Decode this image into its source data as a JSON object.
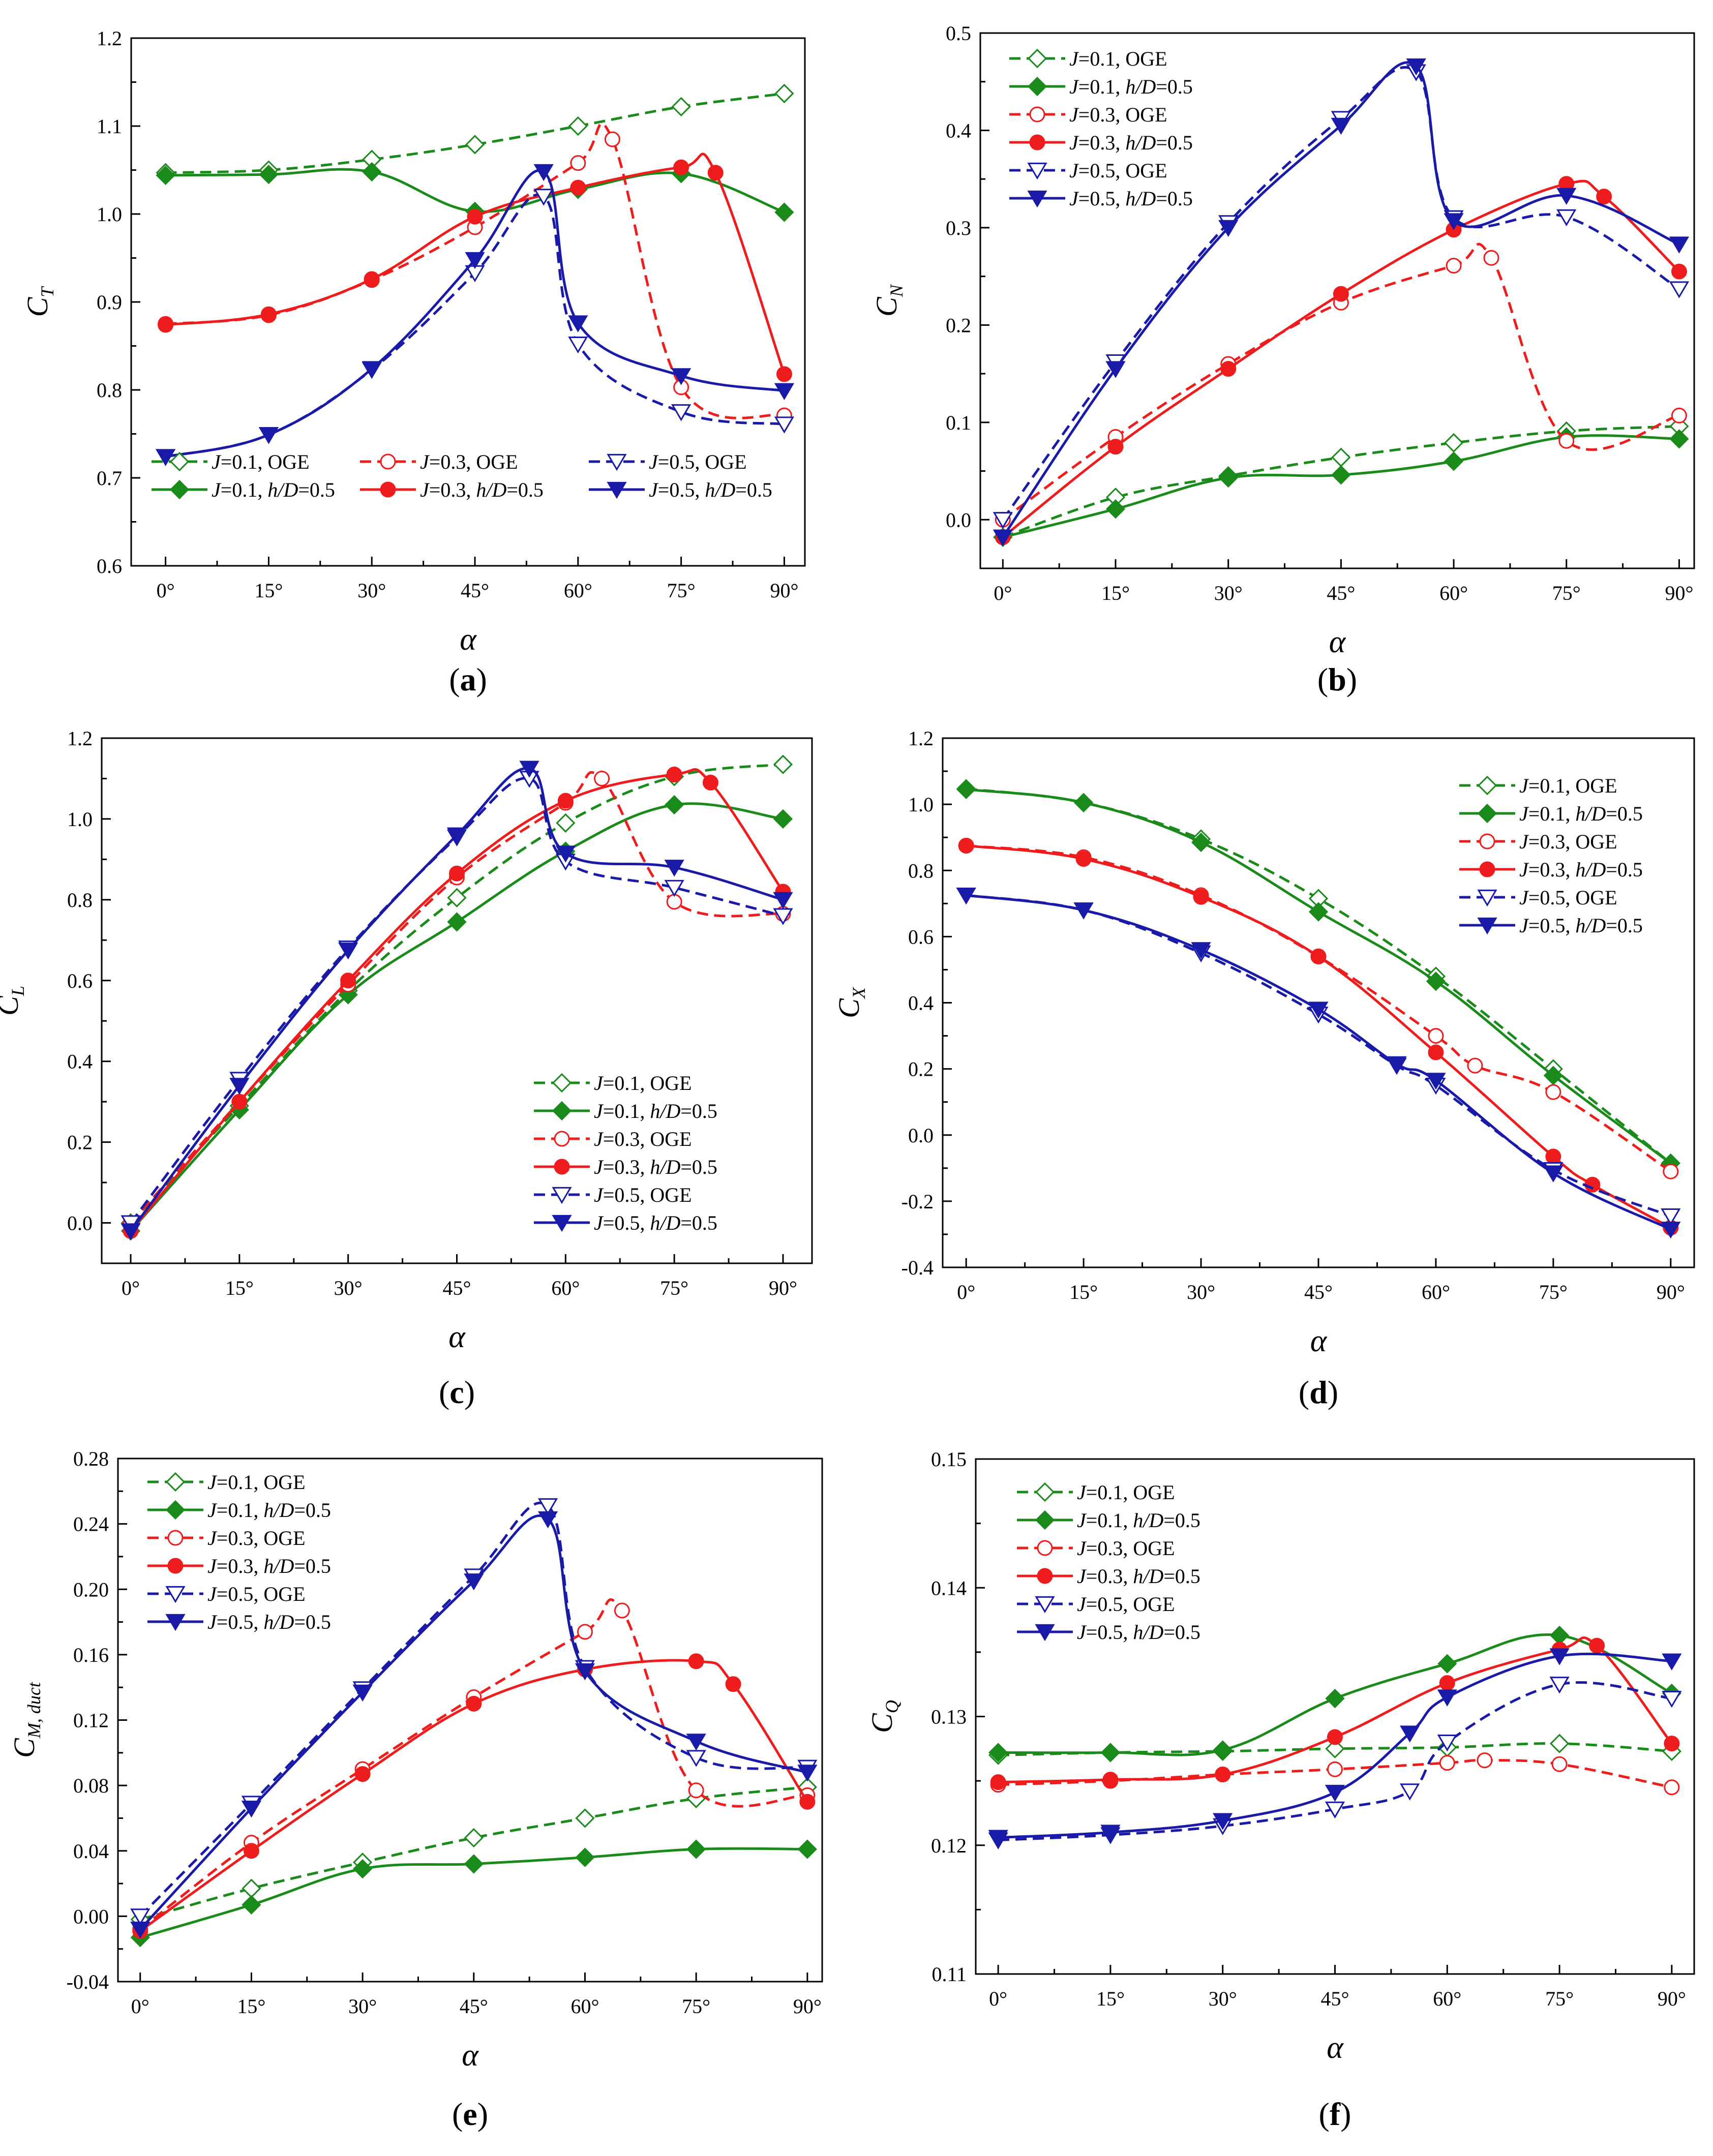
{
  "figure": {
    "x_tick_labels": [
      "0°",
      "15°",
      "30°",
      "45°",
      "60°",
      "75°",
      "90°"
    ],
    "x_label": "α",
    "legend_series": [
      {
        "key": "J01_OGE",
        "J": "J",
        "mid": "=0.1, OGE",
        "hD": "",
        "tail": ""
      },
      {
        "key": "J01_hD",
        "J": "J",
        "mid": "=0.1, ",
        "hD": "h/D",
        "tail": "=0.5"
      },
      {
        "key": "J03_OGE",
        "J": "J",
        "mid": "=0.3, OGE",
        "hD": "",
        "tail": ""
      },
      {
        "key": "J03_hD",
        "J": "J",
        "mid": "=0.3, ",
        "hD": "h/D",
        "tail": "=0.5"
      },
      {
        "key": "J05_OGE",
        "J": "J",
        "mid": "=0.5, OGE",
        "hD": "",
        "tail": ""
      },
      {
        "key": "J05_hD",
        "J": "J",
        "mid": "=0.5, ",
        "hD": "h/D",
        "tail": "=0.5"
      }
    ],
    "colors": {
      "J01": "#1a8a1a",
      "J03": "#ee1c1c",
      "J05": "#1a1aa8"
    }
  },
  "chart_data": [
    {
      "panel": "(a)",
      "panel_letter": "a",
      "type": "line",
      "ylabel_main": "C",
      "ylabel_sub": "T",
      "ylim": [
        0.6,
        1.2
      ],
      "yticks": [
        0.6,
        0.7,
        0.8,
        0.9,
        1.0,
        1.1,
        1.2
      ],
      "ytick_labels": [
        "0.6",
        "0.7",
        "0.8",
        "0.9",
        "1.0",
        "1.1",
        "1.2"
      ],
      "xlim": [
        -5,
        93
      ],
      "legend_position": "bottom (2 rows × 3 columns)",
      "series": [
        {
          "name": "J=0.1, OGE",
          "x": [
            0,
            15,
            30,
            45,
            60,
            75,
            90
          ],
          "y": [
            1.047,
            1.05,
            1.062,
            1.079,
            1.1,
            1.122,
            1.137
          ]
        },
        {
          "name": "J=0.1, h/D=0.5",
          "x": [
            0,
            15,
            30,
            45,
            60,
            75,
            90
          ],
          "y": [
            1.044,
            1.045,
            1.048,
            1.003,
            1.028,
            1.046,
            1.002
          ]
        },
        {
          "name": "J=0.3, OGE",
          "x": [
            0,
            15,
            30,
            45,
            60,
            65,
            75,
            90
          ],
          "y": [
            0.875,
            0.885,
            0.925,
            0.985,
            1.058,
            1.085,
            0.803,
            0.771
          ]
        },
        {
          "name": "J=0.3, h/D=0.5",
          "x": [
            0,
            15,
            30,
            45,
            60,
            75,
            80,
            90
          ],
          "y": [
            0.874,
            0.886,
            0.926,
            0.997,
            1.03,
            1.053,
            1.047,
            0.818
          ]
        },
        {
          "name": "J=0.5, OGE",
          "x": [
            0,
            15,
            30,
            45,
            55,
            60,
            75,
            90
          ],
          "y": [
            0.724,
            0.749,
            0.823,
            0.933,
            1.02,
            0.852,
            0.775,
            0.761
          ]
        },
        {
          "name": "J=0.5, h/D=0.5",
          "x": [
            0,
            15,
            30,
            45,
            55,
            60,
            75,
            90
          ],
          "y": [
            0.724,
            0.749,
            0.824,
            0.948,
            1.048,
            0.876,
            0.816,
            0.799
          ]
        }
      ]
    },
    {
      "panel": "(b)",
      "panel_letter": "b",
      "type": "line",
      "ylabel_main": "C",
      "ylabel_sub": "N",
      "ylim": [
        -0.05,
        0.5
      ],
      "yticks": [
        0.0,
        0.1,
        0.2,
        0.3,
        0.4,
        0.5
      ],
      "ytick_labels": [
        "0.0",
        "0.1",
        "0.2",
        "0.3",
        "0.4",
        "0.5"
      ],
      "xlim": [
        -3,
        92
      ],
      "legend_position": "top-left",
      "series": [
        {
          "name": "J=0.1, OGE",
          "x": [
            0,
            15,
            30,
            45,
            60,
            75,
            90
          ],
          "y": [
            -0.018,
            0.023,
            0.045,
            0.064,
            0.079,
            0.091,
            0.096
          ]
        },
        {
          "name": "J=0.1, h/D=0.5",
          "x": [
            0,
            15,
            30,
            45,
            60,
            75,
            90
          ],
          "y": [
            -0.018,
            0.011,
            0.043,
            0.046,
            0.06,
            0.085,
            0.083
          ]
        },
        {
          "name": "J=0.3, OGE",
          "x": [
            0,
            15,
            30,
            45,
            60,
            65,
            75,
            90
          ],
          "y": [
            0.0,
            0.085,
            0.16,
            0.223,
            0.261,
            0.269,
            0.081,
            0.107
          ]
        },
        {
          "name": "J=0.3, h/D=0.5",
          "x": [
            0,
            15,
            30,
            45,
            60,
            75,
            80,
            90
          ],
          "y": [
            -0.018,
            0.075,
            0.155,
            0.232,
            0.298,
            0.345,
            0.332,
            0.255
          ]
        },
        {
          "name": "J=0.5, OGE",
          "x": [
            0,
            15,
            30,
            45,
            55,
            60,
            75,
            90
          ],
          "y": [
            0.0,
            0.162,
            0.305,
            0.412,
            0.46,
            0.31,
            0.311,
            0.237
          ]
        },
        {
          "name": "J=0.5, h/D=0.5",
          "x": [
            0,
            15,
            30,
            45,
            55,
            60,
            75,
            90
          ],
          "y": [
            -0.018,
            0.155,
            0.3,
            0.405,
            0.466,
            0.307,
            0.333,
            0.283
          ]
        }
      ]
    },
    {
      "panel": "(c)",
      "panel_letter": "c",
      "type": "line",
      "ylabel_main": "C",
      "ylabel_sub": "L",
      "ylim": [
        -0.1,
        1.2
      ],
      "yticks": [
        0.0,
        0.2,
        0.4,
        0.6,
        0.8,
        1.0,
        1.2
      ],
      "ytick_labels": [
        "0.0",
        "0.2",
        "0.4",
        "0.6",
        "0.8",
        "1.0",
        "1.2"
      ],
      "xlim": [
        -4,
        94
      ],
      "legend_position": "middle-right",
      "series": [
        {
          "name": "J=0.1, OGE",
          "x": [
            0,
            15,
            30,
            45,
            60,
            75,
            90
          ],
          "y": [
            0.0,
            0.29,
            0.575,
            0.805,
            0.99,
            1.105,
            1.135
          ]
        },
        {
          "name": "J=0.1, h/D=0.5",
          "x": [
            0,
            15,
            30,
            45,
            60,
            75,
            90
          ],
          "y": [
            -0.02,
            0.28,
            0.565,
            0.745,
            0.92,
            1.035,
            1.0
          ]
        },
        {
          "name": "J=0.3, OGE",
          "x": [
            0,
            15,
            30,
            45,
            60,
            65,
            75,
            90
          ],
          "y": [
            0.0,
            0.3,
            0.59,
            0.855,
            1.04,
            1.1,
            0.795,
            0.765
          ]
        },
        {
          "name": "J=0.3, h/D=0.5",
          "x": [
            0,
            15,
            30,
            45,
            60,
            75,
            80,
            90
          ],
          "y": [
            -0.02,
            0.3,
            0.6,
            0.865,
            1.045,
            1.11,
            1.09,
            0.82
          ]
        },
        {
          "name": "J=0.5, OGE",
          "x": [
            0,
            15,
            30,
            45,
            55,
            60,
            75,
            90
          ],
          "y": [
            0.0,
            0.355,
            0.68,
            0.955,
            1.1,
            0.895,
            0.83,
            0.76
          ]
        },
        {
          "name": "J=0.5, h/D=0.5",
          "x": [
            0,
            15,
            30,
            45,
            55,
            60,
            75,
            90
          ],
          "y": [
            -0.02,
            0.34,
            0.675,
            0.96,
            1.125,
            0.915,
            0.88,
            0.8
          ]
        }
      ]
    },
    {
      "panel": "(d)",
      "panel_letter": "d",
      "type": "line",
      "ylabel_main": "C",
      "ylabel_sub": "X",
      "ylim": [
        -0.4,
        1.2
      ],
      "yticks": [
        -0.4,
        -0.2,
        0.0,
        0.2,
        0.4,
        0.6,
        0.8,
        1.0,
        1.2
      ],
      "ytick_labels": [
        "-0.4",
        "-0.2",
        "0.0",
        "0.2",
        "0.4",
        "0.6",
        "0.8",
        "1.0",
        "1.2"
      ],
      "xlim": [
        -3,
        93
      ],
      "legend_position": "top-right",
      "series": [
        {
          "name": "J=0.1, OGE",
          "x": [
            0,
            15,
            30,
            45,
            60,
            75,
            90
          ],
          "y": [
            1.047,
            1.005,
            0.895,
            0.715,
            0.48,
            0.2,
            -0.085
          ]
        },
        {
          "name": "J=0.1, h/D=0.5",
          "x": [
            0,
            15,
            30,
            45,
            60,
            75,
            90
          ],
          "y": [
            1.045,
            1.005,
            0.885,
            0.675,
            0.465,
            0.18,
            -0.085
          ]
        },
        {
          "name": "J=0.3, OGE",
          "x": [
            0,
            15,
            30,
            45,
            60,
            65,
            75,
            90
          ],
          "y": [
            0.875,
            0.84,
            0.725,
            0.54,
            0.3,
            0.21,
            0.13,
            -0.11
          ]
        },
        {
          "name": "J=0.3, h/D=0.5",
          "x": [
            0,
            15,
            30,
            45,
            60,
            75,
            80,
            90
          ],
          "y": [
            0.875,
            0.835,
            0.72,
            0.54,
            0.25,
            -0.065,
            -0.15,
            -0.28
          ]
        },
        {
          "name": "J=0.5, OGE",
          "x": [
            0,
            15,
            30,
            45,
            55,
            60,
            75,
            90
          ],
          "y": [
            0.725,
            0.68,
            0.55,
            0.365,
            0.21,
            0.15,
            -0.105,
            -0.245
          ]
        },
        {
          "name": "J=0.5, h/D=0.5",
          "x": [
            0,
            15,
            30,
            45,
            55,
            60,
            75,
            90
          ],
          "y": [
            0.725,
            0.68,
            0.56,
            0.38,
            0.215,
            0.165,
            -0.115,
            -0.285
          ]
        }
      ]
    },
    {
      "panel": "(e)",
      "panel_letter": "e",
      "type": "line",
      "ylabel_main": "C",
      "ylabel_sub": "M, duct",
      "ylim": [
        -0.04,
        0.28
      ],
      "yticks": [
        -0.04,
        0.0,
        0.04,
        0.08,
        0.12,
        0.16,
        0.2,
        0.24,
        0.28
      ],
      "ytick_labels": [
        "-0.04",
        "0.00",
        "0.04",
        "0.08",
        "0.12",
        "0.16",
        "0.20",
        "0.24",
        "0.28"
      ],
      "xlim": [
        -3,
        92
      ],
      "legend_position": "top-left",
      "series": [
        {
          "name": "J=0.1, OGE",
          "x": [
            0,
            15,
            30,
            45,
            60,
            75,
            90
          ],
          "y": [
            -0.002,
            0.017,
            0.033,
            0.048,
            0.06,
            0.072,
            0.079
          ]
        },
        {
          "name": "J=0.1, h/D=0.5",
          "x": [
            0,
            15,
            30,
            45,
            60,
            75,
            90
          ],
          "y": [
            -0.013,
            0.007,
            0.029,
            0.032,
            0.036,
            0.041,
            0.041
          ]
        },
        {
          "name": "J=0.3, OGE",
          "x": [
            0,
            15,
            30,
            45,
            60,
            65,
            75,
            90
          ],
          "y": [
            -0.008,
            0.045,
            0.09,
            0.134,
            0.174,
            0.187,
            0.077,
            0.074
          ]
        },
        {
          "name": "J=0.3, h/D=0.5",
          "x": [
            0,
            15,
            30,
            45,
            60,
            75,
            80,
            90
          ],
          "y": [
            -0.009,
            0.04,
            0.087,
            0.13,
            0.151,
            0.156,
            0.142,
            0.07
          ]
        },
        {
          "name": "J=0.5, OGE",
          "x": [
            0,
            15,
            30,
            45,
            55,
            60,
            75,
            90
          ],
          "y": [
            0.0,
            0.069,
            0.139,
            0.208,
            0.251,
            0.152,
            0.097,
            0.091
          ]
        },
        {
          "name": "J=0.5, h/D=0.5",
          "x": [
            0,
            15,
            30,
            45,
            55,
            60,
            75,
            90
          ],
          "y": [
            -0.008,
            0.066,
            0.137,
            0.205,
            0.243,
            0.15,
            0.107,
            0.088
          ]
        }
      ]
    },
    {
      "panel": "(f)",
      "panel_letter": "f",
      "type": "line",
      "ylabel_main": "C",
      "ylabel_sub": "Q",
      "ylim": [
        0.11,
        0.15
      ],
      "yticks": [
        0.11,
        0.12,
        0.13,
        0.14,
        0.15
      ],
      "ytick_labels": [
        "0.11",
        "0.12",
        "0.13",
        "0.14",
        "0.15"
      ],
      "xlim": [
        -3,
        93
      ],
      "legend_position": "top-left",
      "series": [
        {
          "name": "J=0.1, OGE",
          "x": [
            0,
            15,
            30,
            45,
            60,
            75,
            90
          ],
          "y": [
            0.127,
            0.1272,
            0.1273,
            0.1275,
            0.1276,
            0.1279,
            0.1273
          ]
        },
        {
          "name": "J=0.1, h/D=0.5",
          "x": [
            0,
            15,
            30,
            45,
            60,
            75,
            90
          ],
          "y": [
            0.1272,
            0.1272,
            0.1274,
            0.1314,
            0.1341,
            0.1363,
            0.1318
          ]
        },
        {
          "name": "J=0.3, OGE",
          "x": [
            0,
            15,
            30,
            45,
            60,
            65,
            75,
            90
          ],
          "y": [
            0.1247,
            0.125,
            0.1255,
            0.1259,
            0.1264,
            0.1266,
            0.1263,
            0.1245
          ]
        },
        {
          "name": "J=0.3, h/D=0.5",
          "x": [
            0,
            15,
            30,
            45,
            60,
            75,
            80,
            90
          ],
          "y": [
            0.1249,
            0.1251,
            0.1255,
            0.1284,
            0.1326,
            0.1352,
            0.1355,
            0.1279
          ]
        },
        {
          "name": "J=0.5, OGE",
          "x": [
            0,
            15,
            30,
            45,
            55,
            60,
            75,
            90
          ],
          "y": [
            0.1204,
            0.1208,
            0.1215,
            0.1228,
            0.1242,
            0.128,
            0.1325,
            0.1314
          ]
        },
        {
          "name": "J=0.5, h/D=0.5",
          "x": [
            0,
            15,
            30,
            45,
            55,
            60,
            75,
            90
          ],
          "y": [
            0.1206,
            0.121,
            0.1219,
            0.1241,
            0.1287,
            0.1315,
            0.1347,
            0.1343
          ]
        }
      ]
    }
  ]
}
